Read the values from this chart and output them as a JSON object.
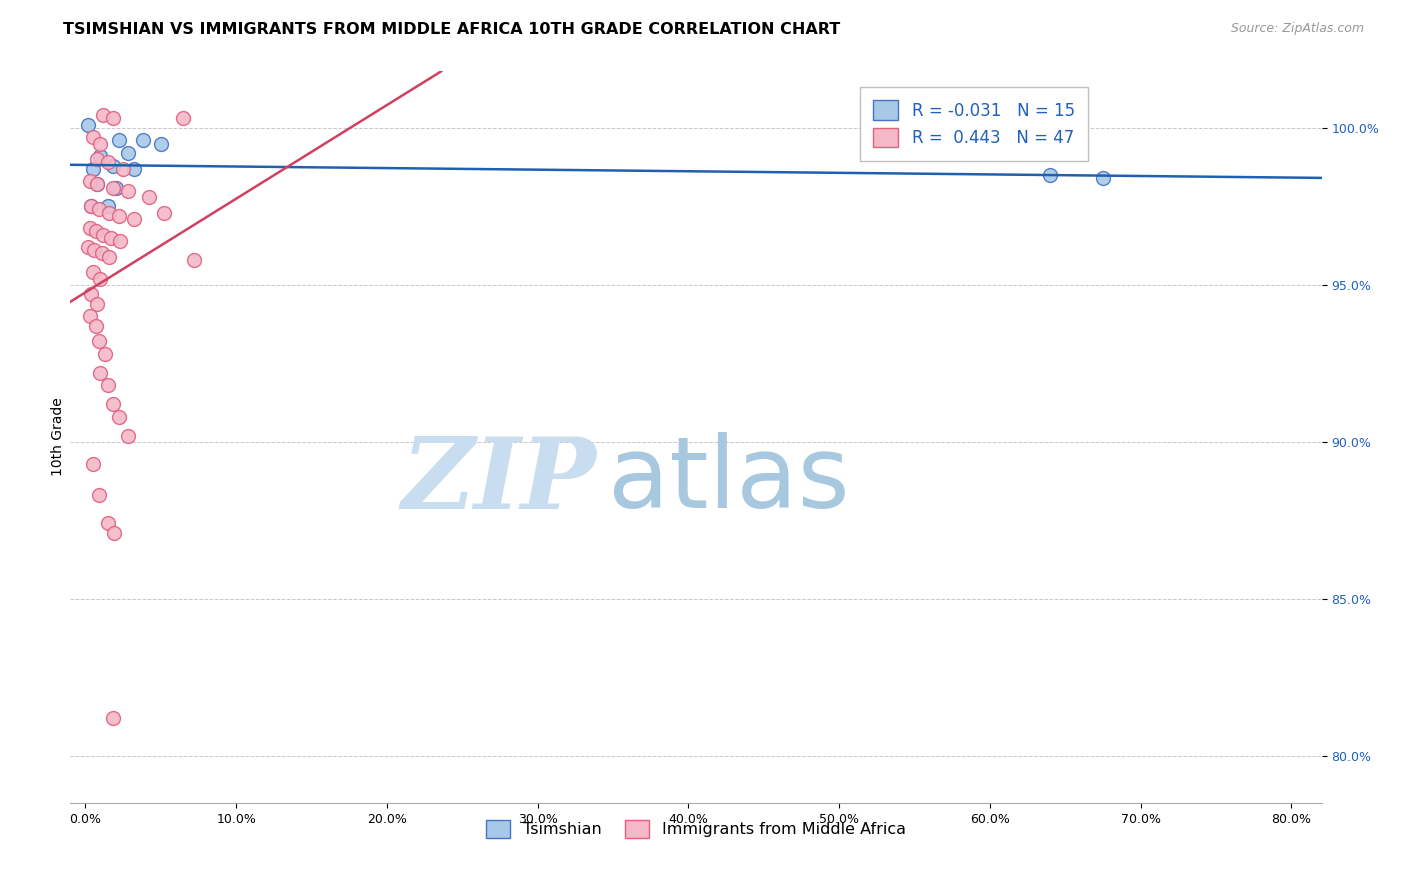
{
  "title": "TSIMSHIAN VS IMMIGRANTS FROM MIDDLE AFRICA 10TH GRADE CORRELATION CHART",
  "source": "Source: ZipAtlas.com",
  "ylabel": "10th Grade",
  "x_ticks": [
    0.0,
    10.0,
    20.0,
    30.0,
    40.0,
    50.0,
    60.0,
    70.0,
    80.0
  ],
  "x_tick_labels": [
    "0.0%",
    "10.0%",
    "20.0%",
    "30.0%",
    "40.0%",
    "50.0%",
    "60.0%",
    "70.0%",
    "80.0%"
  ],
  "y_ticks": [
    80.0,
    85.0,
    90.0,
    95.0,
    100.0
  ],
  "y_tick_labels": [
    "80.0%",
    "85.0%",
    "90.0%",
    "95.0%",
    "100.0%"
  ],
  "xlim": [
    -1.0,
    82
  ],
  "ylim": [
    78.5,
    101.8
  ],
  "blue_color": "#a8c8e8",
  "pink_color": "#f4b8c8",
  "blue_edge_color": "#4472c4",
  "pink_edge_color": "#e06080",
  "trend_blue_color": "#2060b0",
  "trend_pink_color": "#d04060",
  "grid_color": "#c8c8c8",
  "R_blue": -0.031,
  "N_blue": 15,
  "R_pink": 0.443,
  "N_pink": 47,
  "blue_dots": [
    [
      0.2,
      100.1
    ],
    [
      2.2,
      99.6
    ],
    [
      3.8,
      99.6
    ],
    [
      5.0,
      99.5
    ],
    [
      1.0,
      99.1
    ],
    [
      2.8,
      99.2
    ],
    [
      0.5,
      98.7
    ],
    [
      1.8,
      98.8
    ],
    [
      3.2,
      98.7
    ],
    [
      0.8,
      98.2
    ],
    [
      2.0,
      98.1
    ],
    [
      0.4,
      97.5
    ],
    [
      1.5,
      97.5
    ],
    [
      64.0,
      98.5
    ],
    [
      67.5,
      98.4
    ]
  ],
  "pink_dots": [
    [
      1.2,
      100.4
    ],
    [
      1.8,
      100.3
    ],
    [
      6.5,
      100.3
    ],
    [
      0.5,
      99.7
    ],
    [
      1.0,
      99.5
    ],
    [
      0.8,
      99.0
    ],
    [
      1.5,
      98.9
    ],
    [
      2.5,
      98.7
    ],
    [
      0.3,
      98.3
    ],
    [
      0.8,
      98.2
    ],
    [
      1.8,
      98.1
    ],
    [
      2.8,
      98.0
    ],
    [
      4.2,
      97.8
    ],
    [
      0.4,
      97.5
    ],
    [
      0.9,
      97.4
    ],
    [
      1.6,
      97.3
    ],
    [
      2.2,
      97.2
    ],
    [
      3.2,
      97.1
    ],
    [
      0.3,
      96.8
    ],
    [
      0.7,
      96.7
    ],
    [
      1.2,
      96.6
    ],
    [
      1.7,
      96.5
    ],
    [
      2.3,
      96.4
    ],
    [
      0.2,
      96.2
    ],
    [
      0.6,
      96.1
    ],
    [
      1.1,
      96.0
    ],
    [
      1.6,
      95.9
    ],
    [
      0.5,
      95.4
    ],
    [
      1.0,
      95.2
    ],
    [
      0.4,
      94.7
    ],
    [
      0.8,
      94.4
    ],
    [
      0.3,
      94.0
    ],
    [
      0.7,
      93.7
    ],
    [
      0.9,
      93.2
    ],
    [
      1.3,
      92.8
    ],
    [
      1.0,
      92.2
    ],
    [
      1.5,
      91.8
    ],
    [
      1.8,
      91.2
    ],
    [
      2.2,
      90.8
    ],
    [
      2.8,
      90.2
    ],
    [
      5.2,
      97.3
    ],
    [
      7.2,
      95.8
    ],
    [
      0.5,
      89.3
    ],
    [
      0.9,
      88.3
    ],
    [
      1.5,
      87.4
    ],
    [
      1.9,
      87.1
    ],
    [
      1.8,
      81.2
    ]
  ],
  "watermark_zip": "ZIP",
  "watermark_atlas": "atlas",
  "watermark_color_zip": "#c8ddf0",
  "watermark_color_atlas": "#a8c8e0",
  "marker_size": 100,
  "title_fontsize": 11.5,
  "axis_label_fontsize": 10,
  "tick_fontsize": 9,
  "legend_fontsize": 12,
  "legend_color": "#2060c0"
}
